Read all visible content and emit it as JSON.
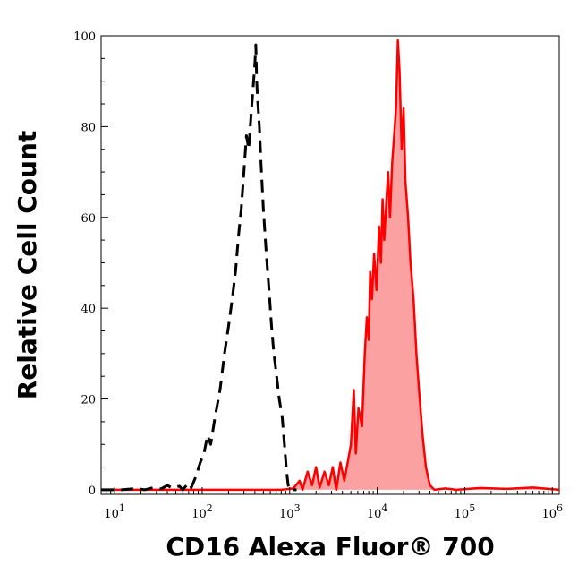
{
  "chart_data": {
    "type": "area",
    "title": "",
    "xlabel": "CD16 Alexa Fluor® 700",
    "ylabel": "Relative Cell Count",
    "x_scale": "log",
    "xlim": [
      7,
      1200000
    ],
    "ylim": [
      -1,
      100
    ],
    "x_ticks": [
      {
        "value": 10,
        "base": "10",
        "exp": "1"
      },
      {
        "value": 100,
        "base": "10",
        "exp": "2"
      },
      {
        "value": 1000,
        "base": "10",
        "exp": "3"
      },
      {
        "value": 10000,
        "base": "10",
        "exp": "4"
      },
      {
        "value": 100000,
        "base": "10",
        "exp": "5"
      },
      {
        "value": 1000000,
        "base": "10",
        "exp": "6"
      }
    ],
    "y_ticks": [
      0,
      20,
      40,
      60,
      80,
      100
    ],
    "y_tick_labels": [
      "0",
      "20",
      "40",
      "60",
      "80",
      "100"
    ],
    "grid": false,
    "legend": false,
    "series": [
      {
        "style": "dashed",
        "color": "#000000",
        "fill": "none",
        "points": [
          [
            7,
            0
          ],
          [
            12,
            0
          ],
          [
            18,
            0.3
          ],
          [
            22,
            0
          ],
          [
            28,
            0.5
          ],
          [
            34,
            0.2
          ],
          [
            40,
            1
          ],
          [
            45,
            0.4
          ],
          [
            55,
            0.8
          ],
          [
            60,
            0
          ],
          [
            70,
            1.5
          ],
          [
            75,
            0.5
          ],
          [
            85,
            3
          ],
          [
            95,
            6
          ],
          [
            105,
            8
          ],
          [
            115,
            12
          ],
          [
            125,
            10
          ],
          [
            140,
            16
          ],
          [
            160,
            22
          ],
          [
            180,
            30
          ],
          [
            200,
            36
          ],
          [
            220,
            42
          ],
          [
            240,
            48
          ],
          [
            260,
            56
          ],
          [
            280,
            62
          ],
          [
            300,
            70
          ],
          [
            320,
            78
          ],
          [
            340,
            75
          ],
          [
            360,
            82
          ],
          [
            380,
            88
          ],
          [
            400,
            94
          ],
          [
            410,
            98
          ],
          [
            420,
            90
          ],
          [
            430,
            86
          ],
          [
            450,
            80
          ],
          [
            470,
            72
          ],
          [
            500,
            62
          ],
          [
            540,
            52
          ],
          [
            580,
            44
          ],
          [
            620,
            36
          ],
          [
            660,
            30
          ],
          [
            700,
            26
          ],
          [
            760,
            20
          ],
          [
            820,
            16
          ],
          [
            870,
            10
          ],
          [
            920,
            4
          ],
          [
            960,
            1
          ],
          [
            1000,
            0
          ],
          [
            1200,
            0
          ]
        ]
      },
      {
        "style": "solid",
        "color": "#ff0000",
        "fill": "#fca1a1",
        "points": [
          [
            7,
            0
          ],
          [
            800,
            0
          ],
          [
            1100,
            0.3
          ],
          [
            1300,
            2
          ],
          [
            1400,
            0
          ],
          [
            1600,
            4
          ],
          [
            1800,
            1
          ],
          [
            2000,
            5
          ],
          [
            2200,
            0.5
          ],
          [
            2500,
            4
          ],
          [
            2800,
            1
          ],
          [
            3100,
            5
          ],
          [
            3400,
            0
          ],
          [
            3800,
            6
          ],
          [
            4200,
            2
          ],
          [
            4700,
            7
          ],
          [
            5000,
            10
          ],
          [
            5400,
            22
          ],
          [
            5700,
            8
          ],
          [
            6100,
            18
          ],
          [
            6700,
            14
          ],
          [
            7200,
            30
          ],
          [
            7600,
            38
          ],
          [
            8000,
            33
          ],
          [
            8300,
            48
          ],
          [
            8700,
            42
          ],
          [
            9200,
            52
          ],
          [
            9800,
            44
          ],
          [
            10500,
            58
          ],
          [
            11000,
            50
          ],
          [
            11500,
            64
          ],
          [
            12000,
            55
          ],
          [
            12600,
            62
          ],
          [
            13300,
            70
          ],
          [
            14000,
            60
          ],
          [
            14800,
            72
          ],
          [
            15600,
            78
          ],
          [
            16400,
            84
          ],
          [
            17200,
            99
          ],
          [
            18000,
            92
          ],
          [
            19000,
            75
          ],
          [
            20000,
            84
          ],
          [
            21000,
            68
          ],
          [
            22500,
            60
          ],
          [
            24000,
            50
          ],
          [
            26000,
            42
          ],
          [
            28000,
            30
          ],
          [
            30000,
            22
          ],
          [
            33000,
            12
          ],
          [
            36000,
            5
          ],
          [
            40000,
            1
          ],
          [
            45000,
            0
          ],
          [
            60000,
            0.3
          ],
          [
            80000,
            0
          ],
          [
            150000,
            0.4
          ],
          [
            300000,
            0.2
          ],
          [
            600000,
            0.5
          ],
          [
            1200000,
            0
          ]
        ]
      }
    ]
  }
}
